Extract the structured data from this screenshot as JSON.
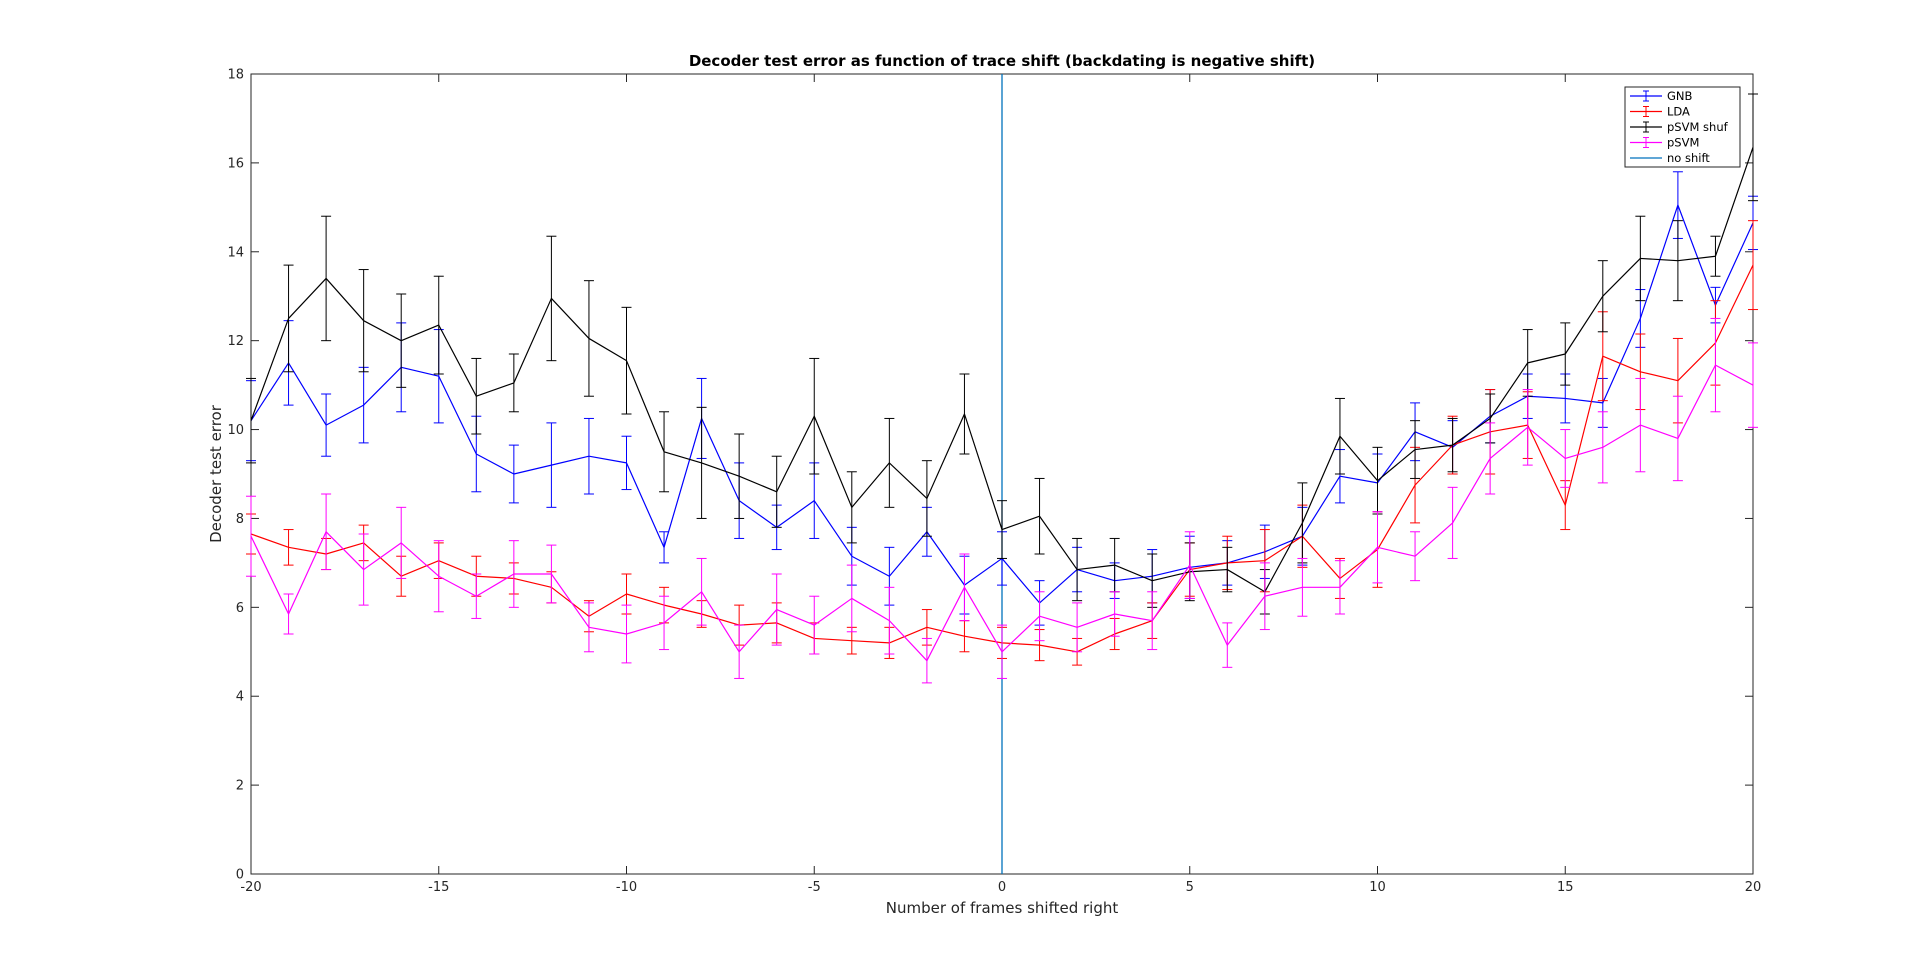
{
  "chart_data": {
    "type": "line",
    "title": "Decoder test error as function of trace shift (backdating is negative shift)",
    "xlabel": "Number of frames shifted right",
    "ylabel": "Decoder test error",
    "xlim": [
      -20,
      20
    ],
    "ylim": [
      0,
      18
    ],
    "xticks": [
      "-20",
      "-15",
      "-10",
      "-5",
      "0",
      "5",
      "10",
      "15",
      "20"
    ],
    "yticks": [
      "0",
      "2",
      "4",
      "6",
      "8",
      "10",
      "12",
      "14",
      "16",
      "18"
    ],
    "grid": false,
    "legend_position": "top-right",
    "x": [
      -20,
      -19,
      -18,
      -17,
      -16,
      -15,
      -14,
      -13,
      -12,
      -11,
      -10,
      -9,
      -8,
      -7,
      -6,
      -5,
      -4,
      -3,
      -2,
      -1,
      0,
      1,
      2,
      3,
      4,
      5,
      6,
      7,
      8,
      9,
      10,
      11,
      12,
      13,
      14,
      15,
      16,
      17,
      18,
      19,
      20
    ],
    "series": [
      {
        "name": "GNB",
        "color": "#0000ff",
        "error_bars": true,
        "values": [
          10.2,
          11.5,
          10.1,
          10.55,
          11.4,
          11.2,
          9.45,
          9.0,
          9.2,
          9.4,
          9.25,
          7.35,
          10.25,
          8.4,
          7.8,
          8.4,
          7.15,
          6.7,
          7.7,
          6.5,
          7.1,
          6.1,
          6.85,
          6.6,
          6.7,
          6.9,
          7.0,
          7.25,
          7.6,
          8.95,
          8.8,
          9.95,
          9.6,
          10.3,
          10.75,
          10.7,
          10.6,
          12.5,
          15.05,
          12.8,
          14.65
        ],
        "errors": [
          0.9,
          0.95,
          0.7,
          0.85,
          1.0,
          1.05,
          0.85,
          0.65,
          0.95,
          0.85,
          0.6,
          0.35,
          0.9,
          0.85,
          0.5,
          0.85,
          0.65,
          0.65,
          0.55,
          0.65,
          0.6,
          0.5,
          0.5,
          0.4,
          0.6,
          0.7,
          0.5,
          0.6,
          0.65,
          0.6,
          0.65,
          0.65,
          0.6,
          0.6,
          0.5,
          0.55,
          0.55,
          0.65,
          0.75,
          0.4,
          0.6
        ]
      },
      {
        "name": "LDA",
        "color": "#ff0000",
        "error_bars": true,
        "values": [
          7.65,
          7.35,
          7.2,
          7.45,
          6.7,
          7.05,
          6.7,
          6.65,
          6.45,
          5.8,
          6.3,
          6.05,
          5.85,
          5.6,
          5.65,
          5.3,
          5.25,
          5.2,
          5.55,
          5.35,
          5.2,
          5.15,
          5.0,
          5.4,
          5.7,
          6.85,
          7.0,
          7.05,
          7.6,
          6.65,
          7.3,
          8.75,
          9.65,
          9.95,
          10.1,
          8.3,
          11.65,
          11.3,
          11.1,
          11.95,
          13.7
        ],
        "errors": [
          0.45,
          0.4,
          0.35,
          0.4,
          0.45,
          0.4,
          0.45,
          0.35,
          0.35,
          0.35,
          0.45,
          0.4,
          0.3,
          0.45,
          0.45,
          0.35,
          0.3,
          0.35,
          0.4,
          0.35,
          0.35,
          0.35,
          0.3,
          0.35,
          0.4,
          0.6,
          0.6,
          0.7,
          0.7,
          0.45,
          0.85,
          0.85,
          0.65,
          0.95,
          0.75,
          0.55,
          1.0,
          0.85,
          0.95,
          0.95,
          1.0
        ]
      },
      {
        "name": "pSVM shuf",
        "color": "#000000",
        "error_bars": true,
        "values": [
          10.2,
          12.5,
          13.4,
          12.45,
          12.0,
          12.35,
          10.75,
          11.05,
          12.95,
          12.05,
          11.55,
          9.5,
          9.25,
          8.95,
          8.6,
          10.3,
          8.25,
          9.25,
          8.45,
          10.35,
          7.75,
          8.05,
          6.85,
          6.95,
          6.6,
          6.8,
          6.85,
          6.35,
          7.9,
          9.85,
          8.85,
          9.55,
          9.65,
          10.25,
          11.5,
          11.7,
          13.0,
          13.85,
          13.8,
          13.9,
          16.35
        ],
        "errors": [
          0.95,
          1.2,
          1.4,
          1.15,
          1.05,
          1.1,
          0.85,
          0.65,
          1.4,
          1.3,
          1.2,
          0.9,
          1.25,
          0.95,
          0.8,
          1.3,
          0.8,
          1.0,
          0.85,
          0.9,
          0.65,
          0.85,
          0.7,
          0.6,
          0.6,
          0.65,
          0.5,
          0.5,
          0.9,
          0.85,
          0.75,
          0.65,
          0.6,
          0.55,
          0.75,
          0.7,
          0.8,
          0.95,
          0.9,
          0.45,
          1.2
        ]
      },
      {
        "name": "pSVM",
        "color": "#ff00ff",
        "error_bars": true,
        "values": [
          7.6,
          5.85,
          7.7,
          6.85,
          7.45,
          6.7,
          6.25,
          6.75,
          6.75,
          5.55,
          5.4,
          5.65,
          6.35,
          5.0,
          5.95,
          5.6,
          6.2,
          5.7,
          4.8,
          6.45,
          5.0,
          5.8,
          5.55,
          5.85,
          5.7,
          6.95,
          5.15,
          6.25,
          6.45,
          6.45,
          7.35,
          7.15,
          7.9,
          9.35,
          10.05,
          9.35,
          9.6,
          10.1,
          9.8,
          11.45,
          11.0
        ],
        "errors": [
          0.9,
          0.45,
          0.85,
          0.8,
          0.8,
          0.8,
          0.5,
          0.75,
          0.65,
          0.55,
          0.65,
          0.6,
          0.75,
          0.6,
          0.8,
          0.65,
          0.75,
          0.75,
          0.5,
          0.75,
          0.6,
          0.55,
          0.55,
          0.5,
          0.65,
          0.75,
          0.5,
          0.75,
          0.65,
          0.6,
          0.8,
          0.55,
          0.8,
          0.8,
          0.85,
          0.65,
          0.8,
          1.05,
          0.95,
          1.05,
          0.95
        ]
      },
      {
        "name": "no shift",
        "color": "#0072bd",
        "error_bars": false,
        "vertical_line_x": 0
      }
    ]
  }
}
